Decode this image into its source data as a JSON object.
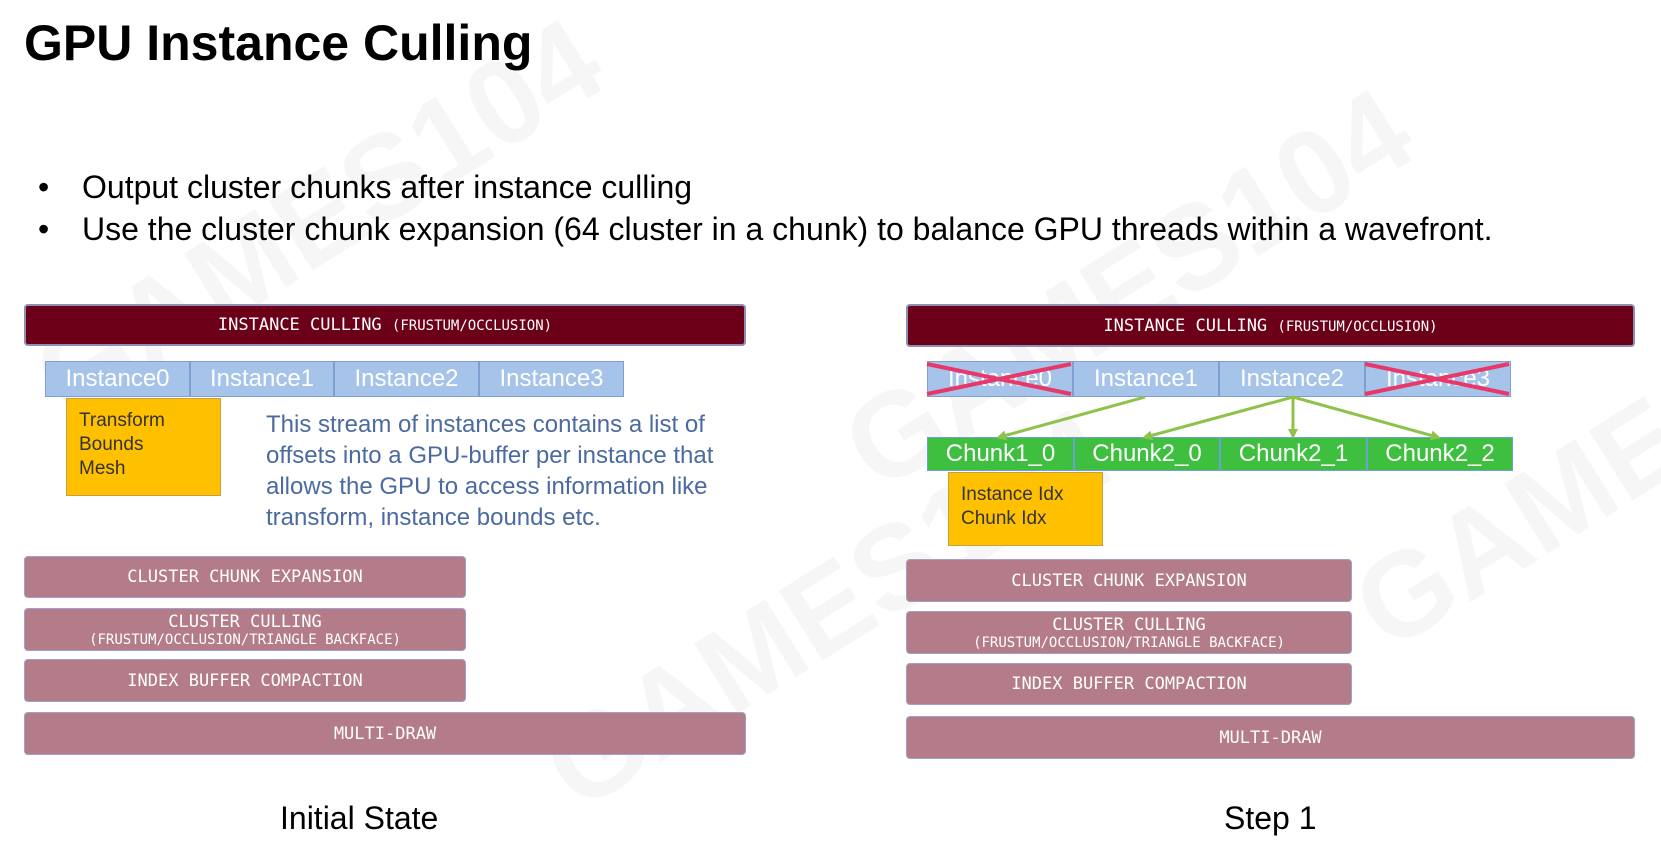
{
  "title": "GPU Instance Culling",
  "bullets": [
    "Output cluster chunks after instance culling",
    "Use the cluster chunk expansion (64 cluster in a chunk) to balance GPU threads within a wavefront."
  ],
  "bullet_char": "•",
  "watermark": "GAMES104",
  "left_panel": {
    "caption": "Initial State",
    "culling_bar": {
      "main": "INSTANCE CULLING",
      "sub": "(FRUSTUM/OCCLUSION)"
    },
    "instances": [
      "Instance0",
      "Instance1",
      "Instance2",
      "Instance3"
    ],
    "note": [
      "Transform",
      "Bounds",
      "Mesh"
    ],
    "description": [
      "This stream of instances contains a list of",
      "offsets into a GPU-buffer per instance that",
      "allows the GPU to access information like",
      "transform, instance bounds etc."
    ],
    "cluster_chunk_expansion": "CLUSTER CHUNK EXPANSION",
    "cluster_culling": {
      "main": "CLUSTER CULLING",
      "sub": "(FRUSTUM/OCCLUSION/TRIANGLE BACKFACE)"
    },
    "index_buffer_compaction": "INDEX BUFFER COMPACTION",
    "multi_draw": "MULTI-DRAW"
  },
  "right_panel": {
    "caption": "Step 1",
    "culling_bar": {
      "main": "INSTANCE CULLING",
      "sub": "(FRUSTUM/OCCLUSION)"
    },
    "instances": [
      "Instance0",
      "Instance1",
      "Instance2",
      "Instance3"
    ],
    "culled_instances": [
      "Instance0",
      "Instance3"
    ],
    "chunks": [
      "Chunk1_0",
      "Chunk2_0",
      "Chunk2_1",
      "Chunk2_2"
    ],
    "note": [
      "Instance Idx",
      "Chunk Idx"
    ],
    "cluster_chunk_expansion": "CLUSTER CHUNK EXPANSION",
    "cluster_culling": {
      "main": "CLUSTER CULLING",
      "sub": "(FRUSTUM/OCCLUSION/TRIANGLE BACKFACE)"
    },
    "index_buffer_compaction": "INDEX BUFFER COMPACTION",
    "multi_draw": "MULTI-DRAW"
  },
  "colors": {
    "instance_culling_bar": "#6c0019",
    "stage_bar": "#b47c88",
    "instance_cell": "#a6c3ea",
    "chunk_cell": "#3fbf3f",
    "note_box": "#ffc000",
    "description_text": "#4a6aa0",
    "cull_cross": "#e8386a",
    "arrow": "#8fc24a"
  }
}
